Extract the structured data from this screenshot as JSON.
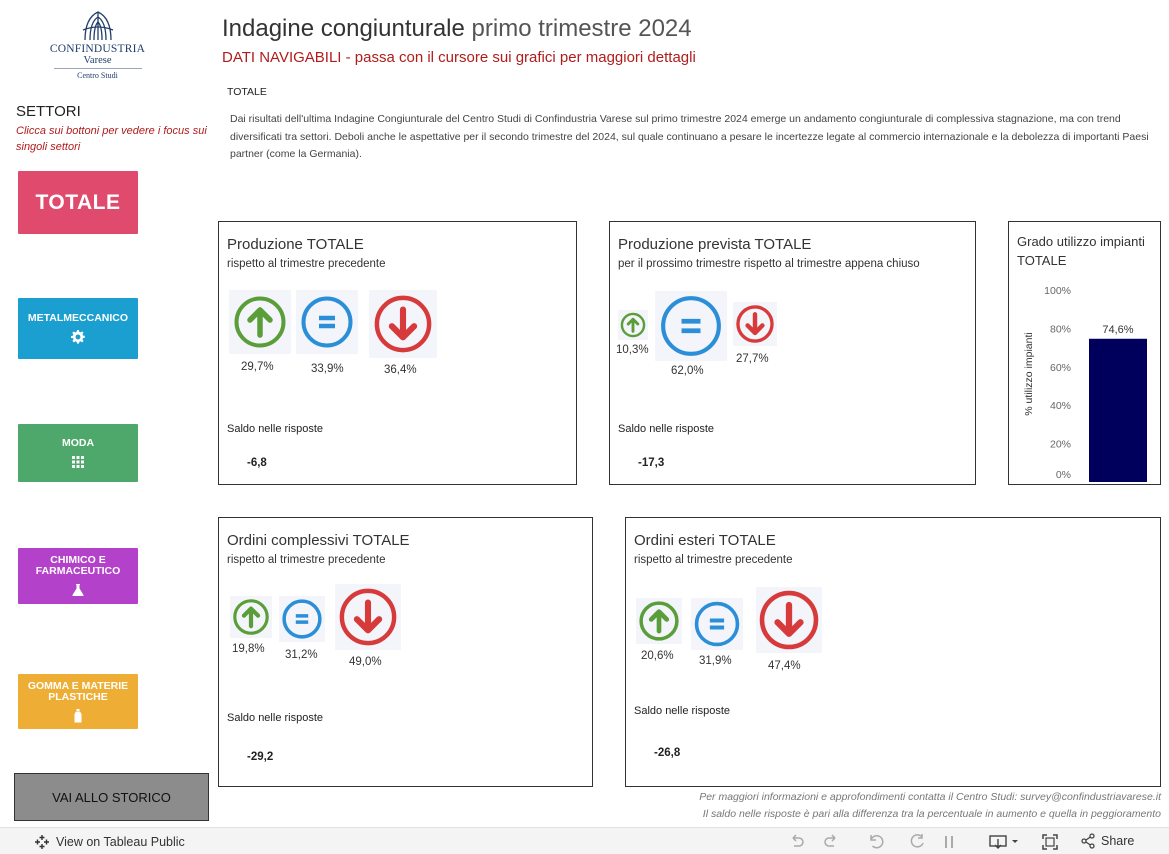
{
  "logo": {
    "line1": "CONFINDUSTRIA",
    "line2": "Varese",
    "line3": "Centro Studi"
  },
  "header": {
    "title_bold": "Indagine congiunturale",
    "title_light": " primo trimestre 2024",
    "subtitle": "DATI NAVIGABILI - passa con il cursore sui grafici per maggiori dettagli"
  },
  "intro": {
    "label": "TOTALE",
    "text": "Dai risultati dell'ultima Indagine Congiunturale del Centro Studi di Confindustria Varese sul primo trimestre 2024 emerge un andamento congiunturale di complessiva stagnazione, ma con trend diversificati tra settori. Deboli anche le aspettative per il secondo trimestre del 2024, sul quale continuano a pesare le incertezze legate al commercio internazionale e la debolezza di importanti Paesi partner (come la Germania)."
  },
  "sidebar": {
    "title": "SETTORI",
    "hint": "Clicca sui bottoni per vedere i focus sui singoli settori",
    "buttons": {
      "totale": "TOTALE",
      "metal": "METALMECCANICO",
      "moda": "MODA",
      "chimico": "CHIMICO E FARMACEUTICO",
      "gomma": "GOMMA E MATERIE PLASTICHE"
    },
    "storico": "VAI ALLO STORICO"
  },
  "colors": {
    "up": "#5a9e3a",
    "equal": "#2b8fd8",
    "down": "#d63a3a",
    "bar": "#00005c",
    "accent_red": "#b01c1c"
  },
  "cards": {
    "produzione": {
      "title": "Produzione TOTALE",
      "subtitle": "rispetto al trimestre precedente",
      "up": "29,7%",
      "equal": "33,9%",
      "down": "36,4%",
      "saldo_label": "Saldo nelle risposte",
      "saldo": "-6,8"
    },
    "prevista": {
      "title": "Produzione prevista  TOTALE",
      "subtitle": "per il prossimo trimestre rispetto al trimestre appena chiuso",
      "up": "10,3%",
      "equal": "62,0%",
      "down": "27,7%",
      "saldo_label": "Saldo nelle risposte",
      "saldo": "-17,3"
    },
    "ordini": {
      "title": "Ordini complessivi TOTALE",
      "subtitle": "rispetto al trimestre precedente",
      "up": "19,8%",
      "equal": "31,2%",
      "down": "49,0%",
      "saldo_label": "Saldo nelle risposte",
      "saldo": "-29,2"
    },
    "esteri": {
      "title": "Ordini esteri TOTALE",
      "subtitle": "rispetto al trimestre precedente",
      "up": "20,6%",
      "equal": "31,9%",
      "down": "47,4%",
      "saldo_label": "Saldo nelle risposte",
      "saldo": "-26,8"
    },
    "grado": {
      "title": "Grado utilizzo impianti TOTALE"
    }
  },
  "chart_data": {
    "type": "bar",
    "categories": [
      ""
    ],
    "values": [
      74.6
    ],
    "value_label": "74,6%",
    "title": "Grado utilizzo impianti TOTALE",
    "xlabel": "",
    "ylabel": "% utilizzo impianti",
    "ylim": [
      0,
      100
    ],
    "yticks": [
      "0%",
      "20%",
      "40%",
      "60%",
      "80%",
      "100%"
    ],
    "grid": false
  },
  "notes": {
    "note1": "Per maggiori informazioni e approfondimenti contatta il Centro Studi: survey@confindustriavarese.it",
    "note2": "Il saldo nelle risposte è pari alla differenza tra la percentuale in aumento e quella in peggioramento"
  },
  "toolbar": {
    "view_label": "View on Tableau Public",
    "share_label": "Share",
    "icons": [
      "undo-icon",
      "redo-icon",
      "revert-icon",
      "refresh-icon",
      "pause-icon",
      "download-icon",
      "fullscreen-icon",
      "share-icon"
    ]
  }
}
